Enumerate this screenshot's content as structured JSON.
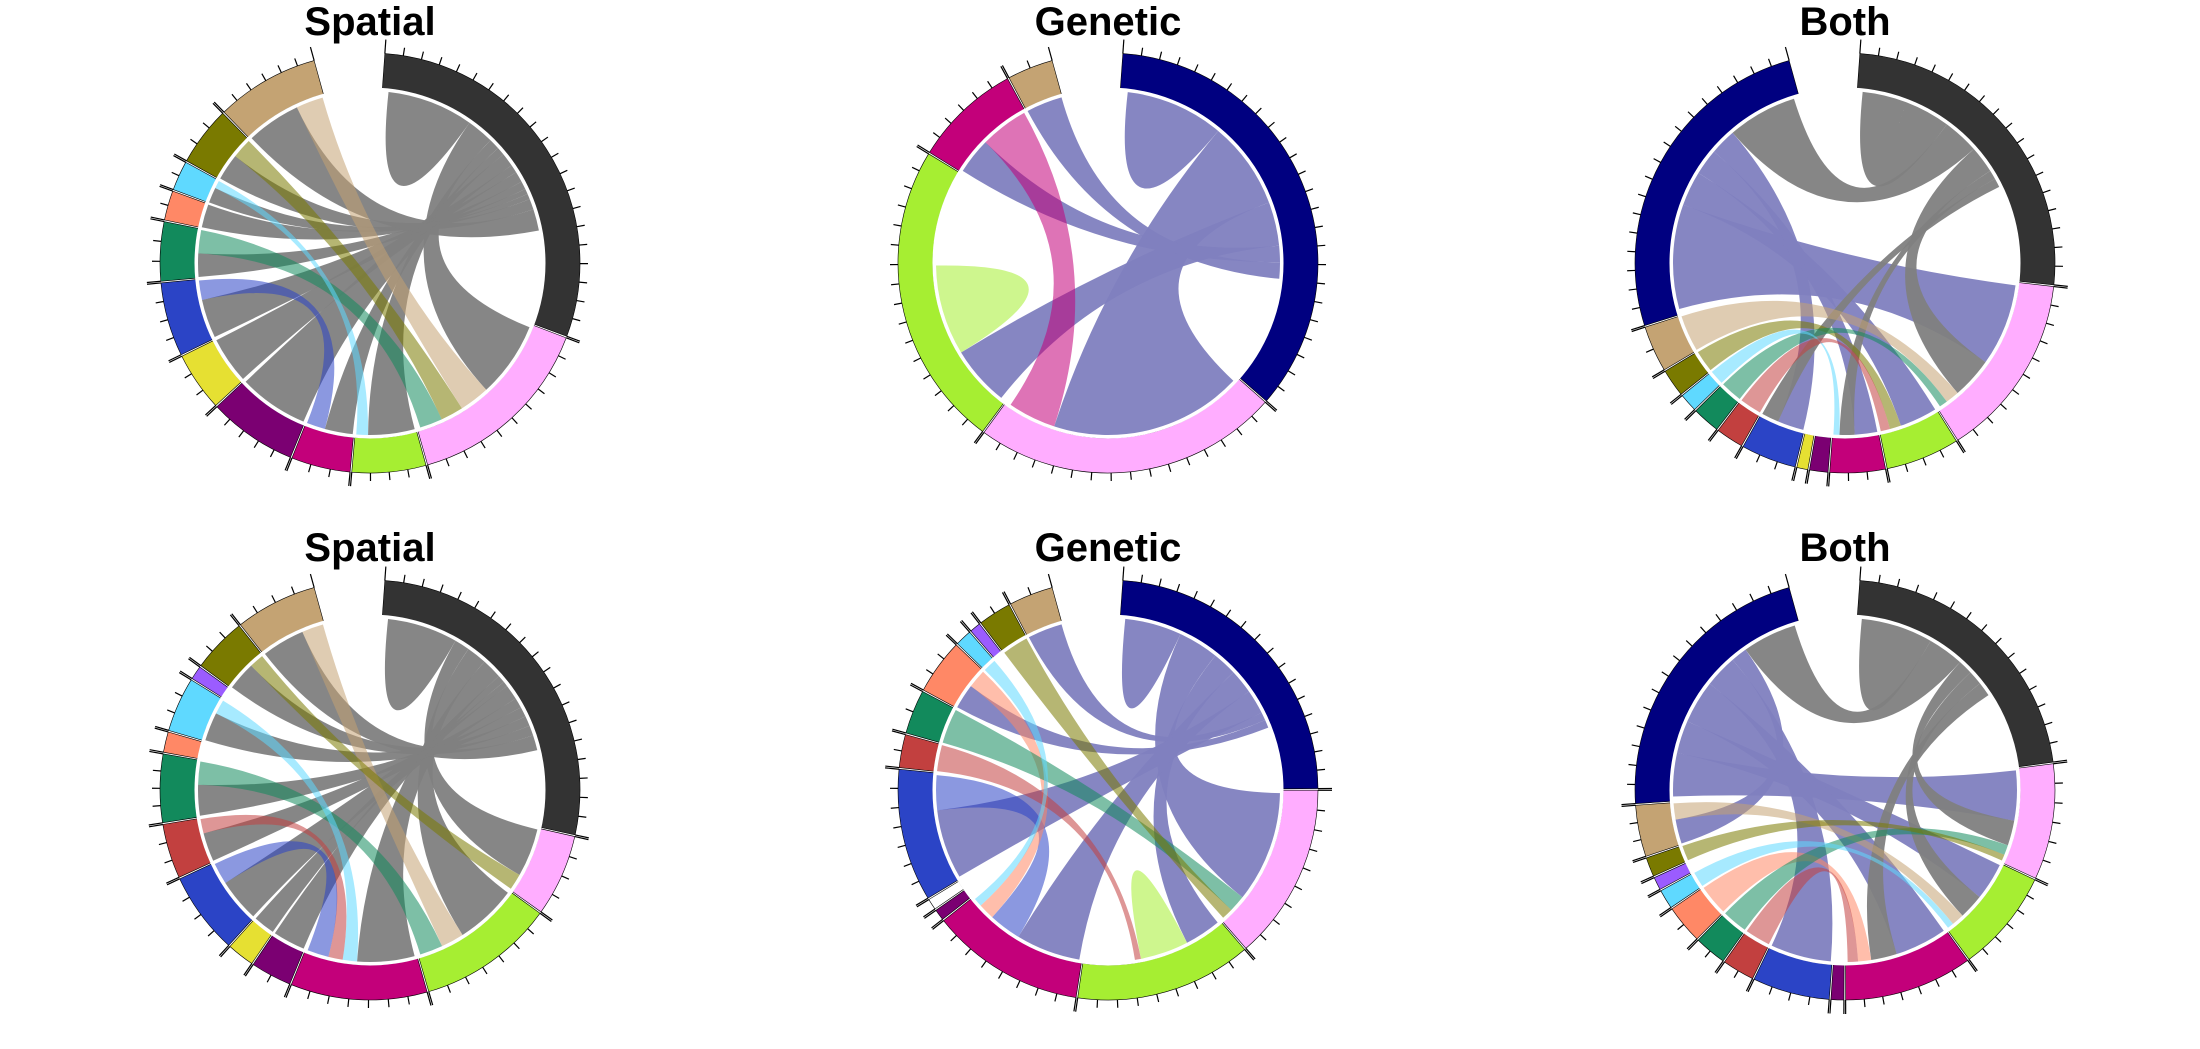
{
  "panels": [
    {
      "title": "Spatial",
      "sectors": [
        {
          "color": "#333333",
          "value": 26
        },
        {
          "color": "#FFADFF",
          "value": 13
        },
        {
          "color": "#A6EE32",
          "value": 5
        },
        {
          "color": "#C3007A",
          "value": 4
        },
        {
          "color": "#7B0072",
          "value": 6
        },
        {
          "color": "#E6E032",
          "value": 4
        },
        {
          "color": "#2B44C6",
          "value": 5
        },
        {
          "color": "#128A5C",
          "value": 4
        },
        {
          "color": "#FF8866",
          "value": 2
        },
        {
          "color": "#5FD9FF",
          "value": 2
        },
        {
          "color": "#7A7A00",
          "value": 4
        },
        {
          "color": "#C4A373",
          "value": 7
        }
      ],
      "chords": [
        {
          "from": 0,
          "to": 0,
          "w": 16
        },
        {
          "from": 0,
          "to": 1,
          "w": 5
        },
        {
          "from": 0,
          "to": 2,
          "w": 2
        },
        {
          "from": 0,
          "to": 3,
          "w": 1.5
        },
        {
          "from": 0,
          "to": 4,
          "w": 2.5
        },
        {
          "from": 0,
          "to": 5,
          "w": 1.5
        },
        {
          "from": 0,
          "to": 6,
          "w": 2
        },
        {
          "from": 0,
          "to": 7,
          "w": 1.5
        },
        {
          "from": 0,
          "to": 8,
          "w": 1
        },
        {
          "from": 0,
          "to": 9,
          "w": 1
        },
        {
          "from": 0,
          "to": 10,
          "w": 2
        },
        {
          "from": 0,
          "to": 11,
          "w": 4
        },
        {
          "from": 11,
          "to": 1,
          "w": 2
        },
        {
          "from": 10,
          "to": 1,
          "w": 1.5
        },
        {
          "from": 7,
          "to": 1,
          "w": 1.5
        },
        {
          "from": 6,
          "to": 3,
          "w": 1
        },
        {
          "from": 9,
          "to": 2,
          "w": 0.5
        }
      ]
    },
    {
      "title": "Genetic",
      "sectors": [
        {
          "color": "#000080",
          "value": 30
        },
        {
          "color": "#FFADFF",
          "value": 20
        },
        {
          "color": "#A6EE32",
          "value": 20
        },
        {
          "color": "#C3007A",
          "value": 7
        },
        {
          "color": "#C4A373",
          "value": 3
        }
      ],
      "chords": [
        {
          "from": 0,
          "to": 0,
          "w": 18
        },
        {
          "from": 0,
          "to": 1,
          "w": 16
        },
        {
          "from": 0,
          "to": 2,
          "w": 8
        },
        {
          "from": 0,
          "to": 3,
          "w": 3
        },
        {
          "from": 0,
          "to": 4,
          "w": 3
        },
        {
          "from": 2,
          "to": 2,
          "w": 12
        },
        {
          "from": 3,
          "to": 1,
          "w": 4
        }
      ]
    },
    {
      "title": "Both",
      "sectors": [
        {
          "color": "#333333",
          "value": 18
        },
        {
          "color": "#FFADFF",
          "value": 10
        },
        {
          "color": "#A6EE32",
          "value": 4
        },
        {
          "color": "#C3007A",
          "value": 3
        },
        {
          "color": "#7B0072",
          "value": 1
        },
        {
          "color": "#E6E032",
          "value": 0.6
        },
        {
          "color": "#2B44C6",
          "value": 3
        },
        {
          "color": "#C2403F",
          "value": 1.5
        },
        {
          "color": "#128A5C",
          "value": 1.5
        },
        {
          "color": "#5FD9FF",
          "value": 1
        },
        {
          "color": "#7A7A00",
          "value": 1.5
        },
        {
          "color": "#C4A373",
          "value": 2.5
        },
        {
          "color": "#000080",
          "value": 18
        }
      ],
      "chords": [
        {
          "from": 0,
          "to": 0,
          "w": 10
        },
        {
          "from": 12,
          "to": 1,
          "w": 6
        },
        {
          "from": 12,
          "to": 2,
          "w": 2
        },
        {
          "from": 12,
          "to": 3,
          "w": 1.5
        },
        {
          "from": 12,
          "to": 6,
          "w": 1.5
        },
        {
          "from": 0,
          "to": 12,
          "w": 4
        },
        {
          "from": 0,
          "to": 1,
          "w": 3
        },
        {
          "from": 0,
          "to": 3,
          "w": 1
        },
        {
          "from": 0,
          "to": 6,
          "w": 1
        },
        {
          "from": 11,
          "to": 1,
          "w": 1
        },
        {
          "from": 10,
          "to": 2,
          "w": 0.6
        },
        {
          "from": 8,
          "to": 1,
          "w": 0.6
        },
        {
          "from": 9,
          "to": 3,
          "w": 0.4
        },
        {
          "from": 7,
          "to": 2,
          "w": 0.5
        }
      ]
    },
    {
      "title": "Spatial",
      "sectors": [
        {
          "color": "#333333",
          "value": 26
        },
        {
          "color": "#FFADFF",
          "value": 6
        },
        {
          "color": "#A6EE32",
          "value": 10
        },
        {
          "color": "#C3007A",
          "value": 10
        },
        {
          "color": "#7B0072",
          "value": 3
        },
        {
          "color": "#E6E032",
          "value": 2
        },
        {
          "color": "#2B44C6",
          "value": 6
        },
        {
          "color": "#C2403F",
          "value": 4
        },
        {
          "color": "#128A5C",
          "value": 5
        },
        {
          "color": "#FF8866",
          "value": 1.5
        },
        {
          "color": "#5FD9FF",
          "value": 4
        },
        {
          "color": "#9B5CFF",
          "value": 1
        },
        {
          "color": "#7A7A00",
          "value": 4
        },
        {
          "color": "#C4A373",
          "value": 6
        }
      ],
      "chords": [
        {
          "from": 0,
          "to": 0,
          "w": 14
        },
        {
          "from": 0,
          "to": 1,
          "w": 3
        },
        {
          "from": 0,
          "to": 2,
          "w": 4
        },
        {
          "from": 0,
          "to": 3,
          "w": 4
        },
        {
          "from": 0,
          "to": 4,
          "w": 1.5
        },
        {
          "from": 0,
          "to": 5,
          "w": 1
        },
        {
          "from": 0,
          "to": 6,
          "w": 3
        },
        {
          "from": 0,
          "to": 7,
          "w": 2
        },
        {
          "from": 0,
          "to": 8,
          "w": 2
        },
        {
          "from": 0,
          "to": 10,
          "w": 2
        },
        {
          "from": 0,
          "to": 12,
          "w": 2
        },
        {
          "from": 0,
          "to": 13,
          "w": 3
        },
        {
          "from": 13,
          "to": 2,
          "w": 1.5
        },
        {
          "from": 8,
          "to": 2,
          "w": 1.5
        },
        {
          "from": 10,
          "to": 3,
          "w": 1
        },
        {
          "from": 7,
          "to": 3,
          "w": 1
        },
        {
          "from": 6,
          "to": 3,
          "w": 1.5
        },
        {
          "from": 12,
          "to": 1,
          "w": 1
        }
      ]
    },
    {
      "title": "Genetic",
      "sectors": [
        {
          "color": "#000080",
          "value": 28
        },
        {
          "color": "#FFADFF",
          "value": 16
        },
        {
          "color": "#A6EE32",
          "value": 16
        },
        {
          "color": "#C3007A",
          "value": 14
        },
        {
          "color": "#7B0072",
          "value": 1
        },
        {
          "color": "#FFFFFF",
          "value": 1
        },
        {
          "color": "#2B44C6",
          "value": 12
        },
        {
          "color": "#C2403F",
          "value": 3
        },
        {
          "color": "#128A5C",
          "value": 4
        },
        {
          "color": "#FF8866",
          "value": 5
        },
        {
          "color": "#5FD9FF",
          "value": 1.5
        },
        {
          "color": "#9B5CFF",
          "value": 1
        },
        {
          "color": "#7A7A00",
          "value": 3
        },
        {
          "color": "#C4A373",
          "value": 4
        }
      ],
      "chords": [
        {
          "from": 0,
          "to": 0,
          "w": 14
        },
        {
          "from": 0,
          "to": 1,
          "w": 10
        },
        {
          "from": 0,
          "to": 2,
          "w": 6
        },
        {
          "from": 0,
          "to": 3,
          "w": 6
        },
        {
          "from": 0,
          "to": 6,
          "w": 6
        },
        {
          "from": 0,
          "to": 13,
          "w": 2
        },
        {
          "from": 0,
          "to": 9,
          "w": 2
        },
        {
          "from": 2,
          "to": 2,
          "w": 8
        },
        {
          "from": 6,
          "to": 3,
          "w": 3
        },
        {
          "from": 9,
          "to": 3,
          "w": 1.5
        },
        {
          "from": 8,
          "to": 1,
          "w": 1.5
        },
        {
          "from": 7,
          "to": 2,
          "w": 1
        },
        {
          "from": 12,
          "to": 1,
          "w": 1
        },
        {
          "from": 10,
          "to": 3,
          "w": 0.8
        }
      ]
    },
    {
      "title": "Both",
      "sectors": [
        {
          "color": "#333333",
          "value": 22
        },
        {
          "color": "#FFADFF",
          "value": 9
        },
        {
          "color": "#A6EE32",
          "value": 8
        },
        {
          "color": "#C3007A",
          "value": 10
        },
        {
          "color": "#7B0072",
          "value": 1
        },
        {
          "color": "#2B44C6",
          "value": 6
        },
        {
          "color": "#C2403F",
          "value": 2.5
        },
        {
          "color": "#128A5C",
          "value": 2.5
        },
        {
          "color": "#FF8866",
          "value": 3
        },
        {
          "color": "#5FD9FF",
          "value": 1.5
        },
        {
          "color": "#9B5CFF",
          "value": 1
        },
        {
          "color": "#7A7A00",
          "value": 1.5
        },
        {
          "color": "#C4A373",
          "value": 4
        },
        {
          "color": "#000080",
          "value": 22
        }
      ],
      "chords": [
        {
          "from": 0,
          "to": 0,
          "w": 10
        },
        {
          "from": 13,
          "to": 1,
          "w": 4
        },
        {
          "from": 13,
          "to": 2,
          "w": 3
        },
        {
          "from": 13,
          "to": 3,
          "w": 4
        },
        {
          "from": 13,
          "to": 5,
          "w": 3
        },
        {
          "from": 13,
          "to": 12,
          "w": 1.5
        },
        {
          "from": 0,
          "to": 13,
          "w": 5
        },
        {
          "from": 0,
          "to": 1,
          "w": 2
        },
        {
          "from": 0,
          "to": 2,
          "w": 2
        },
        {
          "from": 0,
          "to": 3,
          "w": 2
        },
        {
          "from": 12,
          "to": 2,
          "w": 1
        },
        {
          "from": 8,
          "to": 3,
          "w": 1
        },
        {
          "from": 7,
          "to": 1,
          "w": 0.8
        },
        {
          "from": 6,
          "to": 3,
          "w": 0.8
        },
        {
          "from": 9,
          "to": 2,
          "w": 0.5
        },
        {
          "from": 11,
          "to": 1,
          "w": 0.5
        }
      ]
    }
  ]
}
